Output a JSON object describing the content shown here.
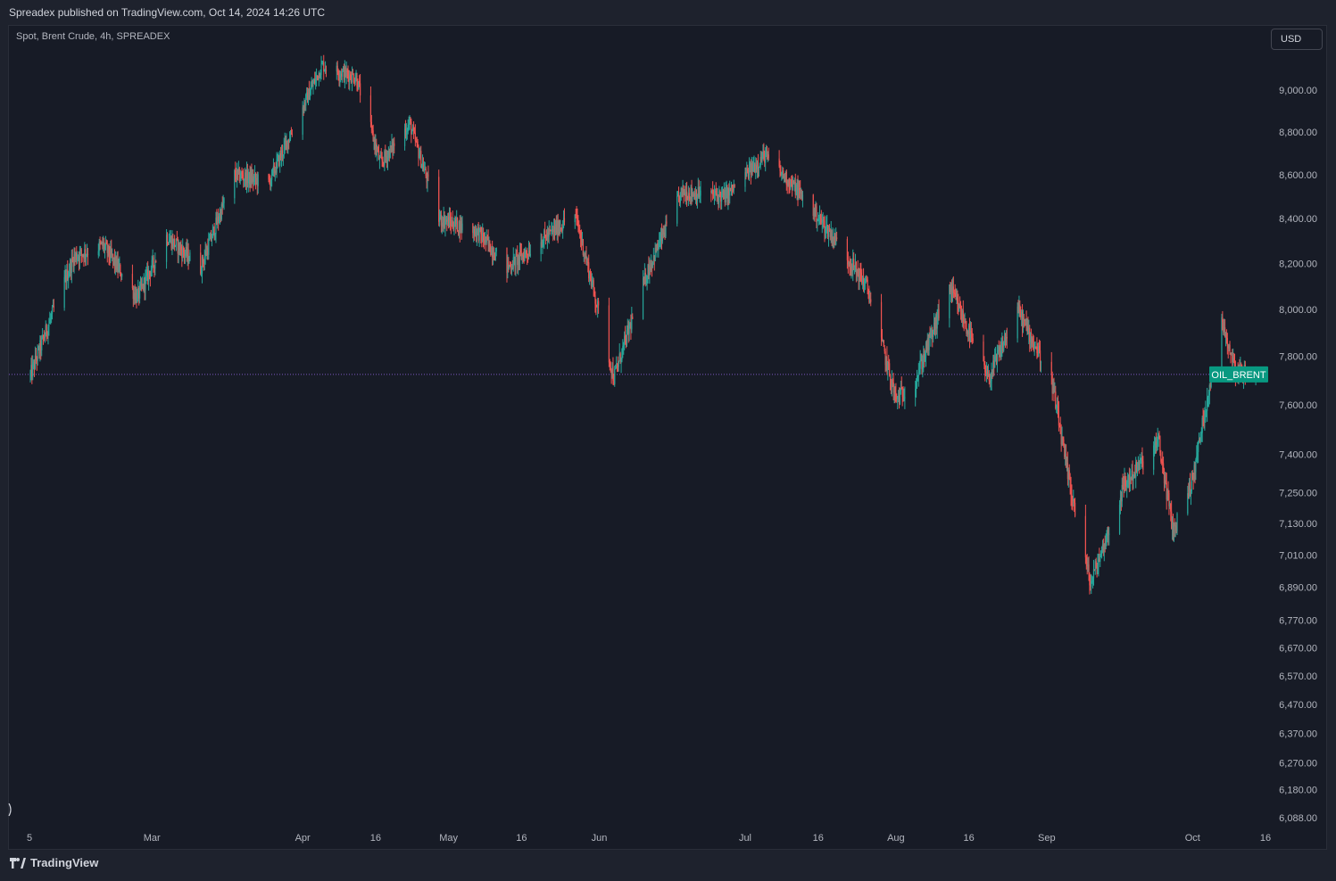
{
  "header": {
    "published_text": "Spreadex published on TradingView.com, Oct 14, 2024 14:26 UTC"
  },
  "chart_header": {
    "symbol_text": "Spot, Brent Crude, 4h, SPREADEX"
  },
  "currency": {
    "label": "USD"
  },
  "footer": {
    "brand": "TradingView",
    "logo_icon": "tradingview-logo-icon"
  },
  "colors": {
    "up": "#26a69a",
    "down": "#ef5350",
    "background": "#171b26",
    "price_line": "#7e57c2",
    "tag": "#089981"
  },
  "chart_data": {
    "type": "candlestick",
    "title": "Spot, Brent Crude, 4h, SPREADEX",
    "ylabel": "USD",
    "y_scale": "log",
    "ylim": [
      6040,
      9400
    ],
    "y_ticks": [
      9000,
      8800,
      8600,
      8400,
      8200,
      8000,
      7800,
      7600,
      7400,
      7250,
      7130,
      7010,
      6890,
      6770,
      6670,
      6570,
      6470,
      6370,
      6270,
      6180,
      6088
    ],
    "y_tick_labels": [
      "9,000.00",
      "8,800.00",
      "8,600.00",
      "8,400.00",
      "8,200.00",
      "8,000.00",
      "7,800.00",
      "7,600.00",
      "7,400.00",
      "7,250.00",
      "7,130.00",
      "7,010.00",
      "6,890.00",
      "6,770.00",
      "6,670.00",
      "6,570.00",
      "6,470.00",
      "6,370.00",
      "6,270.00",
      "6,180.00",
      "6,088.00"
    ],
    "x_ticks": [
      {
        "label": "5",
        "date": "2024-02-05"
      },
      {
        "label": "Mar",
        "date": "2024-03-01"
      },
      {
        "label": "Apr",
        "date": "2024-04-01"
      },
      {
        "label": "16",
        "date": "2024-04-16"
      },
      {
        "label": "May",
        "date": "2024-05-01"
      },
      {
        "label": "16",
        "date": "2024-05-16"
      },
      {
        "label": "Jun",
        "date": "2024-06-01"
      },
      {
        "label": "Jul",
        "date": "2024-07-01"
      },
      {
        "label": "16",
        "date": "2024-07-16"
      },
      {
        "label": "Aug",
        "date": "2024-08-01"
      },
      {
        "label": "16",
        "date": "2024-08-16"
      },
      {
        "label": "Sep",
        "date": "2024-09-01"
      },
      {
        "label": "Oct",
        "date": "2024-10-01"
      },
      {
        "label": "16",
        "date": "2024-10-16"
      }
    ],
    "x_range": [
      "2024-02-05",
      "2024-10-16"
    ],
    "series_name": "OIL_BRENT",
    "last_price": 7725,
    "close_path": [
      {
        "date": "2024-02-05",
        "price": 7720
      },
      {
        "date": "2024-02-09",
        "price": 7950
      },
      {
        "date": "2024-02-14",
        "price": 8230
      },
      {
        "date": "2024-02-20",
        "price": 8280
      },
      {
        "date": "2024-02-27",
        "price": 8050
      },
      {
        "date": "2024-03-04",
        "price": 8320
      },
      {
        "date": "2024-03-11",
        "price": 8180
      },
      {
        "date": "2024-03-18",
        "price": 8600
      },
      {
        "date": "2024-03-25",
        "price": 8560
      },
      {
        "date": "2024-04-05",
        "price": 9120
      },
      {
        "date": "2024-04-12",
        "price": 9060
      },
      {
        "date": "2024-04-17",
        "price": 8650
      },
      {
        "date": "2024-04-23",
        "price": 8840
      },
      {
        "date": "2024-04-29",
        "price": 8400
      },
      {
        "date": "2024-05-07",
        "price": 8340
      },
      {
        "date": "2024-05-13",
        "price": 8180
      },
      {
        "date": "2024-05-20",
        "price": 8300
      },
      {
        "date": "2024-05-27",
        "price": 8420
      },
      {
        "date": "2024-06-04",
        "price": 7710
      },
      {
        "date": "2024-06-11",
        "price": 8170
      },
      {
        "date": "2024-06-18",
        "price": 8520
      },
      {
        "date": "2024-06-27",
        "price": 8500
      },
      {
        "date": "2024-07-05",
        "price": 8690
      },
      {
        "date": "2024-07-12",
        "price": 8520
      },
      {
        "date": "2024-07-19",
        "price": 8320
      },
      {
        "date": "2024-07-26",
        "price": 8100
      },
      {
        "date": "2024-08-01",
        "price": 7620
      },
      {
        "date": "2024-08-05",
        "price": 7700
      },
      {
        "date": "2024-08-12",
        "price": 8100
      },
      {
        "date": "2024-08-20",
        "price": 7700
      },
      {
        "date": "2024-08-26",
        "price": 8000
      },
      {
        "date": "2024-09-02",
        "price": 7700
      },
      {
        "date": "2024-09-05",
        "price": 7350
      },
      {
        "date": "2024-09-10",
        "price": 6900
      },
      {
        "date": "2024-09-17",
        "price": 7280
      },
      {
        "date": "2024-09-24",
        "price": 7450
      },
      {
        "date": "2024-09-27",
        "price": 7100
      },
      {
        "date": "2024-10-01",
        "price": 7300
      },
      {
        "date": "2024-10-07",
        "price": 7950
      },
      {
        "date": "2024-10-10",
        "price": 7740
      },
      {
        "date": "2024-10-14",
        "price": 7725
      }
    ]
  }
}
